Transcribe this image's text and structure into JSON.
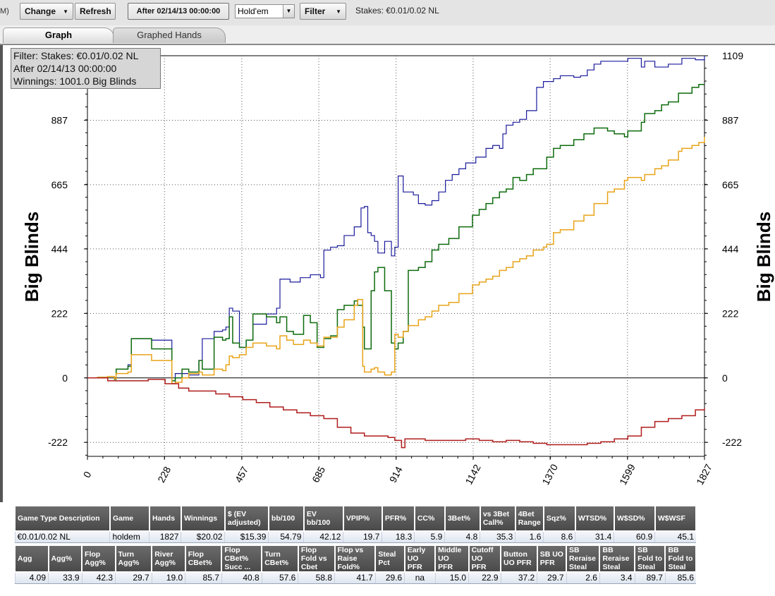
{
  "toolbar": {
    "left_fragment": "M)",
    "change_label": "Change",
    "refresh_label": "Refresh",
    "date_filter_label": "After 02/14/13 00:00:00",
    "game_select_value": "Hold'em",
    "filter_label": "Filter",
    "stakes_label": "Stakes: €0.01/0.02 NL"
  },
  "tabs": [
    {
      "label": "Graph"
    },
    {
      "label": "Graphed Hands"
    }
  ],
  "filter_box": {
    "line1": "Filter: Stakes: €0.01/0.02 NL",
    "line2": "After 02/14/13 00:00:00",
    "line3": "Winnings: 1001.0 Big Blinds"
  },
  "chart_data": {
    "type": "line",
    "ylabel": "Big Blinds",
    "x_ticks": [
      "0",
      "228",
      "457",
      "685",
      "914",
      "1142",
      "1370",
      "1599",
      "1827"
    ],
    "y_ticks": [
      "-222",
      "0",
      "222",
      "444",
      "665",
      "887",
      "1109"
    ],
    "xlim": [
      0,
      1827
    ],
    "ylim": [
      -270,
      1109
    ],
    "grid": true,
    "colors": {
      "blue": "#1a1a9c",
      "green": "#0c6b0c",
      "orange": "#e8a317",
      "red": "#b01c1c"
    },
    "series": [
      {
        "color": "blue",
        "x": [
          0,
          30,
          60,
          80,
          85,
          120,
          130,
          180,
          190,
          250,
          260,
          300,
          330,
          340,
          375,
          400,
          410,
          420,
          430,
          450,
          470,
          490,
          530,
          560,
          570,
          600,
          630,
          660,
          690,
          700,
          720,
          740,
          760,
          790,
          810,
          820,
          830,
          840,
          850,
          860,
          880,
          900,
          910,
          920,
          935,
          950,
          965,
          980,
          1000,
          1020,
          1040,
          1060,
          1080,
          1100,
          1120,
          1150,
          1180,
          1200,
          1220,
          1230,
          1240,
          1260,
          1280,
          1300,
          1330,
          1350,
          1380,
          1400,
          1420,
          1440,
          1460,
          1480,
          1500,
          1520,
          1560,
          1600,
          1640,
          1650,
          1680,
          1720,
          1760,
          1800,
          1827
        ],
        "y": [
          0,
          2,
          5,
          -5,
          30,
          45,
          135,
          135,
          130,
          -20,
          15,
          10,
          60,
          135,
          160,
          165,
          175,
          240,
          230,
          105,
          130,
          185,
          220,
          240,
          340,
          330,
          345,
          355,
          345,
          440,
          450,
          455,
          490,
          520,
          585,
          590,
          500,
          490,
          470,
          430,
          470,
          420,
          450,
          695,
          640,
          640,
          630,
          600,
          595,
          610,
          640,
          680,
          700,
          720,
          740,
          760,
          790,
          800,
          790,
          840,
          870,
          880,
          890,
          920,
          1000,
          1020,
          1030,
          1040,
          1040,
          1035,
          1040,
          1060,
          1080,
          1090,
          1090,
          1100,
          1070,
          1090,
          1070,
          1080,
          1100,
          1095,
          1109
        ]
      },
      {
        "color": "green",
        "x": [
          0,
          30,
          60,
          80,
          85,
          120,
          130,
          180,
          190,
          250,
          260,
          280,
          300,
          330,
          340,
          375,
          400,
          410,
          420,
          430,
          450,
          470,
          490,
          530,
          560,
          570,
          590,
          610,
          640,
          660,
          680,
          700,
          720,
          740,
          760,
          790,
          800,
          815,
          820,
          840,
          850,
          860,
          880,
          900,
          910,
          920,
          935,
          950,
          980,
          1000,
          1020,
          1040,
          1070,
          1100,
          1140,
          1160,
          1180,
          1200,
          1220,
          1240,
          1260,
          1280,
          1300,
          1320,
          1350,
          1360,
          1380,
          1400,
          1440,
          1470,
          1500,
          1540,
          1560,
          1590,
          1600,
          1640,
          1650,
          1680,
          1700,
          1720,
          1750,
          1760,
          1790,
          1810,
          1827
        ],
        "y": [
          0,
          2,
          5,
          -5,
          30,
          40,
          135,
          135,
          100,
          -10,
          0,
          30,
          20,
          60,
          30,
          140,
          130,
          135,
          210,
          120,
          105,
          130,
          220,
          210,
          190,
          210,
          160,
          150,
          215,
          190,
          105,
          135,
          145,
          235,
          250,
          265,
          250,
          175,
          100,
          300,
          365,
          380,
          300,
          120,
          100,
          120,
          160,
          370,
          380,
          400,
          440,
          460,
          480,
          520,
          560,
          580,
          600,
          620,
          640,
          650,
          690,
          680,
          700,
          720,
          720,
          760,
          790,
          800,
          820,
          840,
          860,
          850,
          840,
          830,
          850,
          880,
          910,
          920,
          940,
          950,
          980,
          980,
          1000,
          1010,
          1010
        ]
      },
      {
        "color": "orange",
        "x": [
          0,
          30,
          60,
          80,
          85,
          120,
          130,
          180,
          190,
          250,
          260,
          280,
          300,
          330,
          340,
          375,
          400,
          410,
          420,
          430,
          450,
          470,
          490,
          530,
          560,
          570,
          590,
          610,
          640,
          660,
          680,
          700,
          720,
          740,
          760,
          790,
          800,
          815,
          820,
          840,
          850,
          860,
          880,
          900,
          910,
          920,
          935,
          950,
          980,
          1000,
          1020,
          1040,
          1070,
          1100,
          1140,
          1160,
          1180,
          1200,
          1220,
          1240,
          1260,
          1280,
          1300,
          1320,
          1350,
          1360,
          1380,
          1400,
          1440,
          1470,
          1500,
          1540,
          1560,
          1590,
          1600,
          1640,
          1650,
          1680,
          1700,
          1720,
          1750,
          1760,
          1790,
          1810,
          1827
        ],
        "y": [
          0,
          2,
          5,
          -3,
          15,
          20,
          80,
          80,
          60,
          -20,
          -15,
          0,
          15,
          20,
          10,
          30,
          25,
          45,
          75,
          70,
          80,
          105,
          120,
          110,
          100,
          145,
          130,
          115,
          130,
          120,
          110,
          140,
          140,
          175,
          200,
          250,
          270,
          40,
          20,
          30,
          35,
          20,
          10,
          20,
          150,
          140,
          160,
          180,
          200,
          210,
          230,
          250,
          260,
          290,
          320,
          330,
          340,
          350,
          370,
          380,
          400,
          410,
          420,
          440,
          450,
          460,
          500,
          510,
          540,
          560,
          600,
          640,
          650,
          680,
          690,
          680,
          700,
          720,
          730,
          750,
          780,
          790,
          800,
          810,
          830
        ]
      },
      {
        "color": "red",
        "x": [
          0,
          60,
          120,
          180,
          230,
          270,
          300,
          340,
          380,
          420,
          460,
          500,
          540,
          580,
          620,
          660,
          700,
          740,
          780,
          820,
          860,
          890,
          910,
          930,
          940,
          960,
          1000,
          1040,
          1080,
          1120,
          1160,
          1200,
          1240,
          1280,
          1320,
          1360,
          1400,
          1440,
          1480,
          1520,
          1560,
          1600,
          1640,
          1680,
          1720,
          1760,
          1800,
          1827
        ],
        "y": [
          0,
          -10,
          -10,
          -5,
          -20,
          -35,
          -45,
          -45,
          -55,
          -65,
          -75,
          -85,
          -100,
          -110,
          -120,
          -130,
          -140,
          -170,
          -190,
          -200,
          -200,
          -205,
          -215,
          -240,
          -210,
          -210,
          -215,
          -215,
          -215,
          -210,
          -215,
          -220,
          -215,
          -220,
          -225,
          -230,
          -230,
          -230,
          -225,
          -220,
          -210,
          -200,
          -170,
          -150,
          -140,
          -130,
          -110,
          -105
        ]
      }
    ]
  },
  "stats": {
    "row1_headers": [
      "Game Type Description",
      "Game",
      "Hands",
      "Winnings",
      "$ (EV adjusted)",
      "bb/100",
      "EV bb/100",
      "VPIP%",
      "PFR%",
      "CC%",
      "3Bet%",
      "vs 3Bet Call%",
      "4Bet Range",
      "Sqz%",
      "WTSD%",
      "W$SD%",
      "W$WSF"
    ],
    "row1_values": [
      "€0.01/0.02 NL",
      "holdem",
      "1827",
      "$20.02",
      "$15.39",
      "54.79",
      "42.12",
      "19.7",
      "18.3",
      "5.9",
      "4.8",
      "35.3",
      "1.6",
      "8.6",
      "31.4",
      "60.9",
      "45.1"
    ],
    "row2_headers": [
      "Agg",
      "Agg%",
      "Flop Agg%",
      "Turn Agg%",
      "River Agg%",
      "Flop CBet%",
      "Flop CBet% Succ ...",
      "Turn CBet%",
      "Flop Fold vs Cbet",
      "Flop vs Raise Fold%",
      "Steal Pct",
      "Early UO PFR",
      "Middle UO PFR",
      "Cutoff UO PFR",
      "Button UO PFR",
      "SB UO PFR",
      "SB Reraise Steal",
      "BB Reraise Steal",
      "SB Fold to Steal",
      "BB Fold to Steal"
    ],
    "row2_values": [
      "4.09",
      "33.9",
      "42.3",
      "29.7",
      "19.0",
      "85.7",
      "40.8",
      "57.6",
      "58.8",
      "41.7",
      "29.6",
      "na",
      "15.0",
      "22.9",
      "37.2",
      "29.7",
      "2.6",
      "3.4",
      "89.7",
      "85.6"
    ]
  }
}
